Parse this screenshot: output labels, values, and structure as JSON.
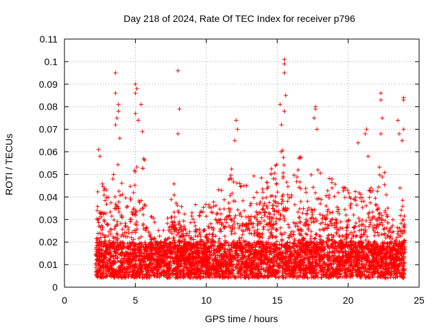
{
  "chart_data": {
    "type": "scatter",
    "title": "Day 218 of 2024, Rate Of TEC Index for receiver p796",
    "xlabel": "GPS time / hours",
    "ylabel": "ROTI / TECUs",
    "xlim": [
      0,
      25
    ],
    "ylim": [
      0,
      0.11
    ],
    "xticks": [
      "0",
      "5",
      "10",
      "15",
      "20",
      "25"
    ],
    "yticks": [
      "0",
      "0.01",
      "0.02",
      "0.03",
      "0.04",
      "0.05",
      "0.06",
      "0.07",
      "0.08",
      "0.09",
      "0.1",
      "0.11"
    ],
    "grid": true,
    "marker": "plus",
    "color": "#ff0000",
    "x_start": 2.2,
    "x_end": 24.0,
    "envelope": [
      [
        2.2,
        0.02
      ],
      [
        2.4,
        0.052
      ],
      [
        2.8,
        0.048
      ],
      [
        3.2,
        0.045
      ],
      [
        3.6,
        0.055
      ],
      [
        3.8,
        0.06
      ],
      [
        4.2,
        0.038
      ],
      [
        4.6,
        0.045
      ],
      [
        5.0,
        0.055
      ],
      [
        5.4,
        0.05
      ],
      [
        5.6,
        0.062
      ],
      [
        6.0,
        0.035
      ],
      [
        6.4,
        0.03
      ],
      [
        6.8,
        0.022
      ],
      [
        7.2,
        0.03
      ],
      [
        7.6,
        0.045
      ],
      [
        8.0,
        0.05
      ],
      [
        8.4,
        0.035
      ],
      [
        8.8,
        0.03
      ],
      [
        9.2,
        0.038
      ],
      [
        9.6,
        0.035
      ],
      [
        10.0,
        0.04
      ],
      [
        10.4,
        0.035
      ],
      [
        10.8,
        0.05
      ],
      [
        11.2,
        0.042
      ],
      [
        11.6,
        0.048
      ],
      [
        12.0,
        0.06
      ],
      [
        12.4,
        0.048
      ],
      [
        12.8,
        0.045
      ],
      [
        13.2,
        0.05
      ],
      [
        13.6,
        0.05
      ],
      [
        14.0,
        0.052
      ],
      [
        14.4,
        0.055
      ],
      [
        14.8,
        0.058
      ],
      [
        15.2,
        0.06
      ],
      [
        15.5,
        0.065
      ],
      [
        15.8,
        0.045
      ],
      [
        16.2,
        0.05
      ],
      [
        16.6,
        0.06
      ],
      [
        17.0,
        0.048
      ],
      [
        17.4,
        0.05
      ],
      [
        17.8,
        0.06
      ],
      [
        18.2,
        0.048
      ],
      [
        18.6,
        0.048
      ],
      [
        19.0,
        0.05
      ],
      [
        19.4,
        0.04
      ],
      [
        19.8,
        0.048
      ],
      [
        20.2,
        0.04
      ],
      [
        20.6,
        0.045
      ],
      [
        21.0,
        0.04
      ],
      [
        21.4,
        0.045
      ],
      [
        21.8,
        0.045
      ],
      [
        22.2,
        0.06
      ],
      [
        22.6,
        0.055
      ],
      [
        23.0,
        0.03
      ],
      [
        23.4,
        0.03
      ],
      [
        23.8,
        0.055
      ],
      [
        24.0,
        0.045
      ]
    ],
    "outliers": [
      [
        3.6,
        0.095
      ],
      [
        3.6,
        0.086
      ],
      [
        3.8,
        0.081
      ],
      [
        3.8,
        0.078
      ],
      [
        3.7,
        0.075
      ],
      [
        3.6,
        0.072
      ],
      [
        3.9,
        0.066
      ],
      [
        5.0,
        0.09
      ],
      [
        5.1,
        0.088
      ],
      [
        5.0,
        0.086
      ],
      [
        5.0,
        0.077
      ],
      [
        5.2,
        0.074
      ],
      [
        5.4,
        0.081
      ],
      [
        5.5,
        0.069
      ],
      [
        8.0,
        0.096
      ],
      [
        8.1,
        0.079
      ],
      [
        8.0,
        0.068
      ],
      [
        12.1,
        0.074
      ],
      [
        12.2,
        0.07
      ],
      [
        12.0,
        0.065
      ],
      [
        15.5,
        0.101
      ],
      [
        15.5,
        0.099
      ],
      [
        15.5,
        0.095
      ],
      [
        15.6,
        0.085
      ],
      [
        15.5,
        0.078
      ],
      [
        15.2,
        0.081
      ],
      [
        15.3,
        0.072
      ],
      [
        17.7,
        0.08
      ],
      [
        17.7,
        0.079
      ],
      [
        17.6,
        0.075
      ],
      [
        17.8,
        0.07
      ],
      [
        20.7,
        0.064
      ],
      [
        21.2,
        0.068
      ],
      [
        21.3,
        0.07
      ],
      [
        22.3,
        0.086
      ],
      [
        22.3,
        0.083
      ],
      [
        22.4,
        0.075
      ],
      [
        22.3,
        0.068
      ],
      [
        23.5,
        0.074
      ],
      [
        23.6,
        0.068
      ],
      [
        23.9,
        0.084
      ],
      [
        23.9,
        0.083
      ],
      [
        23.9,
        0.07
      ],
      [
        23.8,
        0.065
      ],
      [
        2.4,
        0.061
      ],
      [
        2.5,
        0.058
      ],
      [
        21.4,
        0.058
      ]
    ]
  }
}
